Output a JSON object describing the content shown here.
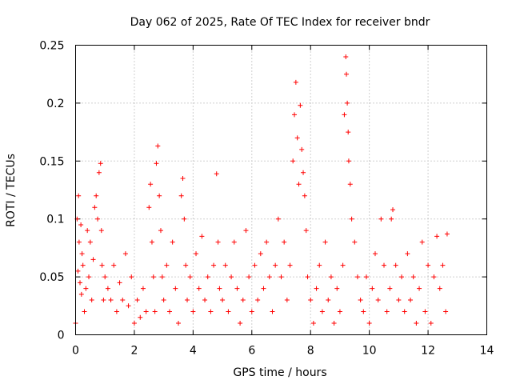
{
  "chart_data": {
    "type": "scatter",
    "title": "Day 062 of 2025, Rate Of TEC Index for receiver bndr",
    "xlabel": "GPS time / hours",
    "ylabel": "ROTI / TECUs",
    "xlim": [
      0,
      14
    ],
    "ylim": [
      0,
      0.25
    ],
    "x_ticks": [
      0,
      2,
      4,
      6,
      8,
      10,
      12,
      14
    ],
    "y_ticks": [
      0,
      0.05,
      0.1,
      0.15,
      0.2,
      0.25
    ],
    "x_tick_labels": [
      "0",
      "2",
      "4",
      "6",
      "8",
      "10",
      "12",
      "14"
    ],
    "y_tick_labels": [
      "0",
      "0.05",
      "0.1",
      "0.15",
      "0.2",
      "0.25"
    ],
    "grid": true,
    "marker": "+",
    "color": "#ff0000",
    "series": [
      {
        "name": "",
        "x": [
          0.0,
          0.05,
          0.08,
          0.1,
          0.12,
          0.15,
          0.18,
          0.2,
          0.22,
          0.25,
          0.3,
          0.35,
          0.4,
          0.45,
          0.5,
          0.55,
          0.6,
          0.65,
          0.7,
          0.75,
          0.8,
          0.85,
          0.88,
          0.9,
          0.95,
          1.0,
          1.1,
          1.2,
          1.3,
          1.4,
          1.5,
          1.6,
          1.7,
          1.8,
          1.9,
          2.0,
          2.1,
          2.2,
          2.3,
          2.4,
          2.5,
          2.55,
          2.6,
          2.65,
          2.7,
          2.75,
          2.8,
          2.85,
          2.9,
          2.95,
          3.0,
          3.1,
          3.2,
          3.3,
          3.4,
          3.5,
          3.6,
          3.65,
          3.7,
          3.75,
          3.8,
          3.9,
          4.0,
          4.1,
          4.2,
          4.3,
          4.4,
          4.5,
          4.6,
          4.7,
          4.8,
          4.85,
          4.9,
          5.0,
          5.1,
          5.2,
          5.3,
          5.4,
          5.5,
          5.6,
          5.7,
          5.8,
          5.9,
          6.0,
          6.1,
          6.2,
          6.3,
          6.4,
          6.5,
          6.6,
          6.7,
          6.8,
          6.9,
          7.0,
          7.1,
          7.2,
          7.3,
          7.4,
          7.45,
          7.5,
          7.55,
          7.6,
          7.65,
          7.7,
          7.75,
          7.8,
          7.85,
          7.9,
          8.0,
          8.1,
          8.2,
          8.3,
          8.4,
          8.5,
          8.6,
          8.7,
          8.8,
          8.9,
          9.0,
          9.1,
          9.15,
          9.2,
          9.22,
          9.25,
          9.28,
          9.3,
          9.35,
          9.4,
          9.5,
          9.6,
          9.7,
          9.8,
          9.9,
          10.0,
          10.1,
          10.2,
          10.3,
          10.4,
          10.5,
          10.6,
          10.7,
          10.75,
          10.8,
          10.9,
          11.0,
          11.1,
          11.2,
          11.3,
          11.4,
          11.5,
          11.6,
          11.7,
          11.8,
          11.9,
          12.0,
          12.1,
          12.2,
          12.3,
          12.4,
          12.5,
          12.6,
          12.65
        ],
        "y": [
          0.01,
          0.1,
          0.055,
          0.12,
          0.08,
          0.045,
          0.095,
          0.035,
          0.07,
          0.06,
          0.02,
          0.04,
          0.09,
          0.05,
          0.08,
          0.03,
          0.065,
          0.11,
          0.12,
          0.1,
          0.14,
          0.148,
          0.09,
          0.06,
          0.03,
          0.05,
          0.04,
          0.03,
          0.06,
          0.02,
          0.045,
          0.03,
          0.07,
          0.025,
          0.05,
          0.01,
          0.03,
          0.015,
          0.04,
          0.02,
          0.11,
          0.13,
          0.08,
          0.05,
          0.02,
          0.148,
          0.163,
          0.12,
          0.09,
          0.05,
          0.03,
          0.06,
          0.02,
          0.08,
          0.04,
          0.01,
          0.12,
          0.135,
          0.1,
          0.06,
          0.03,
          0.05,
          0.02,
          0.07,
          0.04,
          0.085,
          0.03,
          0.05,
          0.02,
          0.06,
          0.139,
          0.08,
          0.04,
          0.03,
          0.06,
          0.02,
          0.05,
          0.08,
          0.04,
          0.01,
          0.03,
          0.09,
          0.05,
          0.02,
          0.06,
          0.03,
          0.07,
          0.04,
          0.08,
          0.05,
          0.02,
          0.06,
          0.1,
          0.05,
          0.08,
          0.03,
          0.06,
          0.15,
          0.19,
          0.218,
          0.17,
          0.13,
          0.198,
          0.16,
          0.14,
          0.12,
          0.09,
          0.05,
          0.03,
          0.01,
          0.04,
          0.06,
          0.02,
          0.08,
          0.03,
          0.05,
          0.01,
          0.04,
          0.02,
          0.06,
          0.19,
          0.24,
          0.225,
          0.2,
          0.175,
          0.15,
          0.13,
          0.1,
          0.08,
          0.05,
          0.03,
          0.02,
          0.05,
          0.01,
          0.04,
          0.07,
          0.03,
          0.1,
          0.06,
          0.02,
          0.04,
          0.1,
          0.108,
          0.06,
          0.03,
          0.05,
          0.02,
          0.07,
          0.03,
          0.05,
          0.01,
          0.04,
          0.08,
          0.02,
          0.06,
          0.01,
          0.05,
          0.085,
          0.04,
          0.06,
          0.02,
          0.087
        ]
      }
    ]
  }
}
